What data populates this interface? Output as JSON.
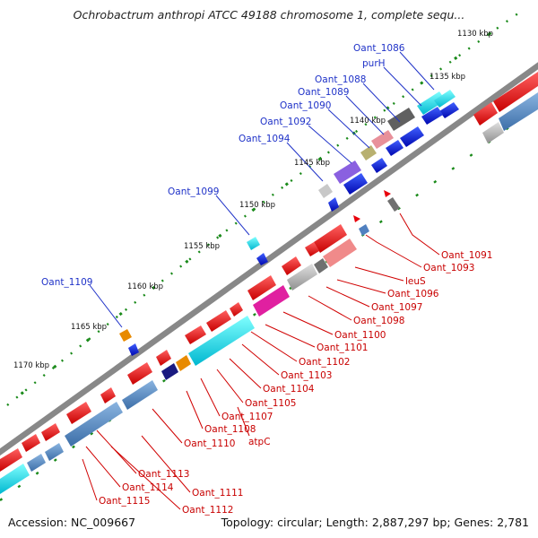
{
  "title": "Ochrobactrum anthropi ATCC 49188 chromosome 1, complete sequ...",
  "footer": {
    "accession": "Accession: NC_009667",
    "summary": "Topology: circular; Length: 2,887,297 bp; Genes: 2,781"
  },
  "scale_labels": [
    {
      "text": "1130 kbp"
    },
    {
      "text": "1135 kbp"
    },
    {
      "text": "1140 kbp"
    },
    {
      "text": "1145 kbp"
    },
    {
      "text": "1150 kbp"
    },
    {
      "text": "1155 kbp"
    },
    {
      "text": "1160 kbp"
    },
    {
      "text": "1165 kbp"
    },
    {
      "text": "1170 kbp"
    }
  ],
  "upper_gene_labels": [
    {
      "text": "Oant_1086"
    },
    {
      "text": "purH"
    },
    {
      "text": "Oant_1088"
    },
    {
      "text": "Oant_1089"
    },
    {
      "text": "Oant_1090"
    },
    {
      "text": "Oant_1092"
    },
    {
      "text": "Oant_1094"
    },
    {
      "text": "Oant_1099"
    },
    {
      "text": "Oant_1109"
    }
  ],
  "lower_gene_labels": [
    {
      "text": "Oant_1091"
    },
    {
      "text": "Oant_1093"
    },
    {
      "text": "leuS"
    },
    {
      "text": "Oant_1096"
    },
    {
      "text": "Oant_1097"
    },
    {
      "text": "Oant_1098"
    },
    {
      "text": "Oant_1100"
    },
    {
      "text": "Oant_1101"
    },
    {
      "text": "Oant_1102"
    },
    {
      "text": "Oant_1103"
    },
    {
      "text": "Oant_1104"
    },
    {
      "text": "Oant_1105"
    },
    {
      "text": "Oant_1107"
    },
    {
      "text": "Oant_1108"
    },
    {
      "text": "atpC"
    },
    {
      "text": "Oant_1110"
    },
    {
      "text": "Oant_1111"
    },
    {
      "text": "Oant_1112"
    },
    {
      "text": "Oant_1113"
    },
    {
      "text": "Oant_1114"
    },
    {
      "text": "Oant_1115"
    }
  ],
  "colors": {
    "forward_strand": "#e8000b",
    "reverse_strand": "#0a14e6",
    "rna": "#00d8e8",
    "hypothetical": "#a0a0a0",
    "backbone": "#555555",
    "tick": "#0a8a0a"
  }
}
